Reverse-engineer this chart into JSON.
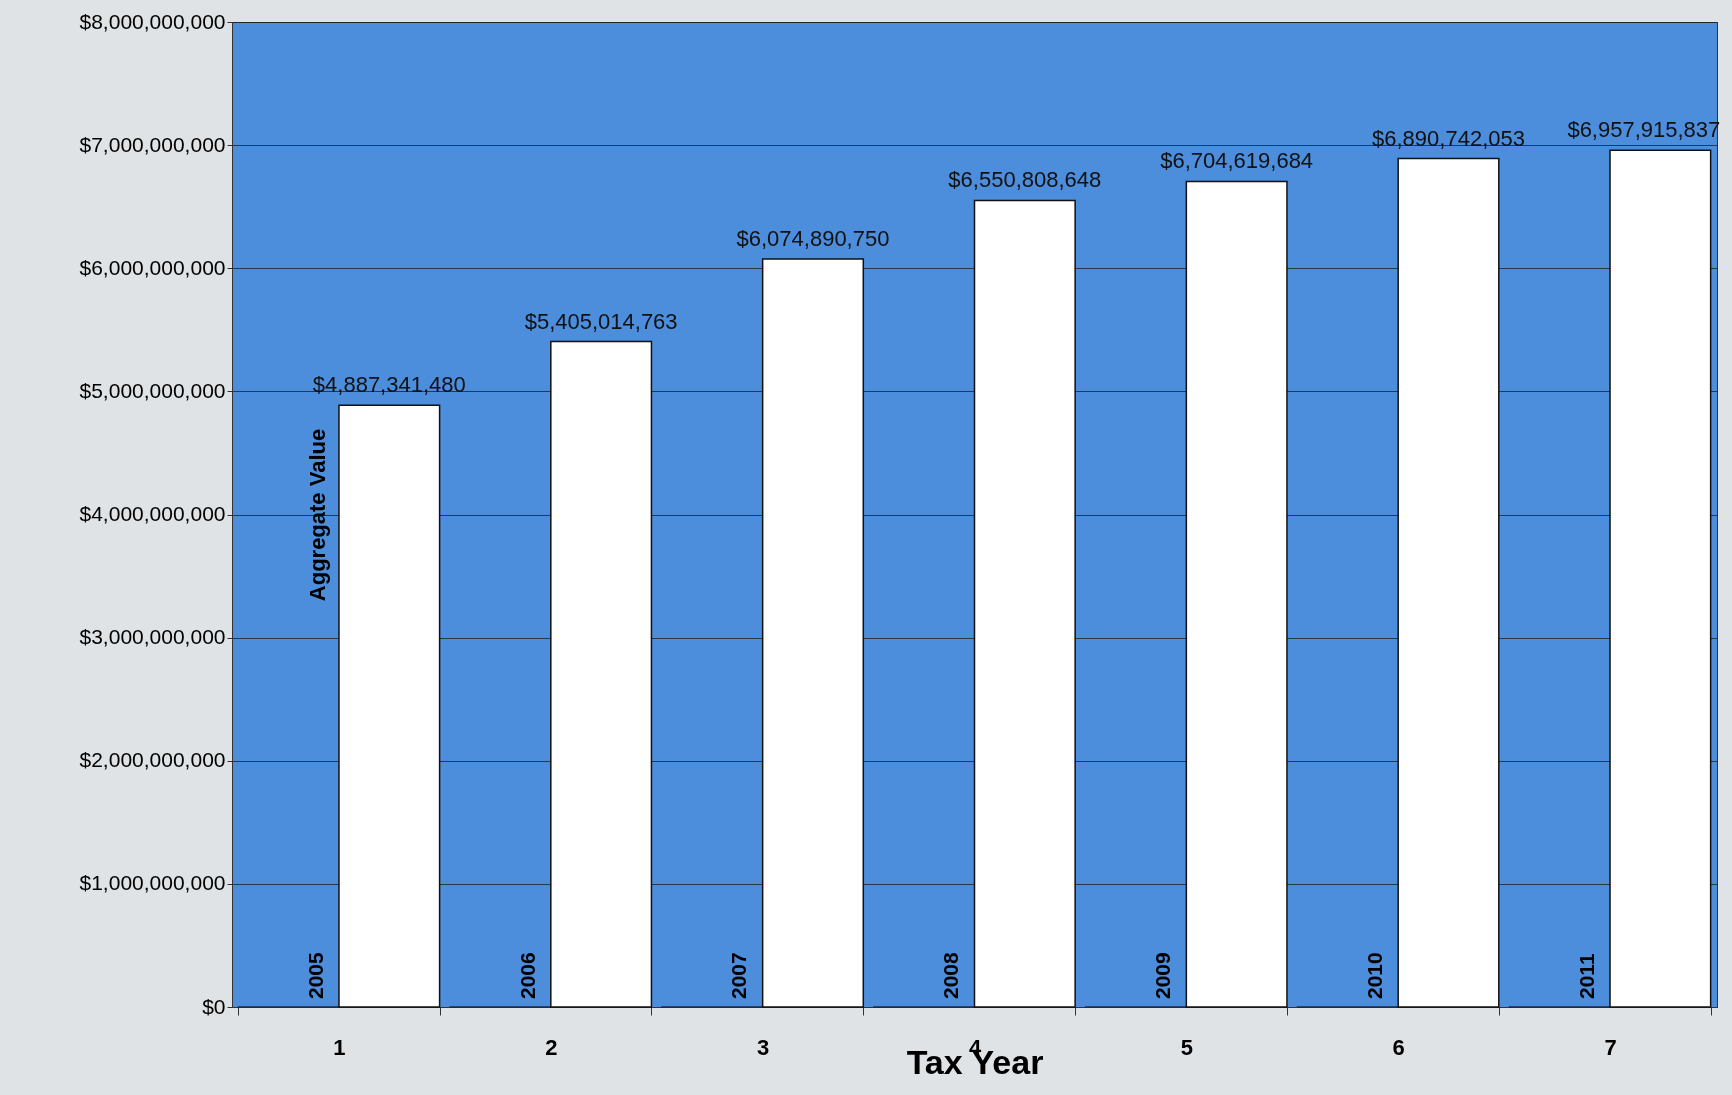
{
  "chart_data": {
    "type": "bar",
    "xlabel": "Tax Year",
    "ylabel": "Aggregate Value",
    "categories": [
      "1",
      "2",
      "3",
      "4",
      "5",
      "6",
      "7"
    ],
    "series": [
      {
        "color": "#1b2b45",
        "values": [
          2005,
          2006,
          2007,
          2008,
          2009,
          2010,
          2011
        ],
        "value_labels": [
          "2005",
          "2006",
          "2007",
          "2008",
          "2009",
          "2010",
          "2011"
        ]
      },
      {
        "color": "#ffffff",
        "values": [
          4887341480,
          5405014763,
          6074890750,
          6550808648,
          6704619684,
          6890742053,
          6957915837
        ],
        "value_labels": [
          "$4,887,341,480",
          "$5,405,014,763",
          "$6,074,890,750",
          "$6,550,808,648",
          "$6,704,619,684",
          "$6,890,742,053",
          "$6,957,915,837"
        ]
      }
    ],
    "ylim": [
      0,
      8000000000
    ],
    "yticks": [
      {
        "value": 0,
        "label": "$0"
      },
      {
        "value": 1000000000,
        "label": "$1,000,000,000"
      },
      {
        "value": 2000000000,
        "label": "$2,000,000,000"
      },
      {
        "value": 3000000000,
        "label": "$3,000,000,000"
      },
      {
        "value": 4000000000,
        "label": "$4,000,000,000"
      },
      {
        "value": 5000000000,
        "label": "$5,000,000,000"
      },
      {
        "value": 6000000000,
        "label": "$6,000,000,000"
      },
      {
        "value": 7000000000,
        "label": "$7,000,000,000"
      },
      {
        "value": 8000000000,
        "label": "$8,000,000,000"
      }
    ],
    "grid": "y",
    "legend": false
  }
}
